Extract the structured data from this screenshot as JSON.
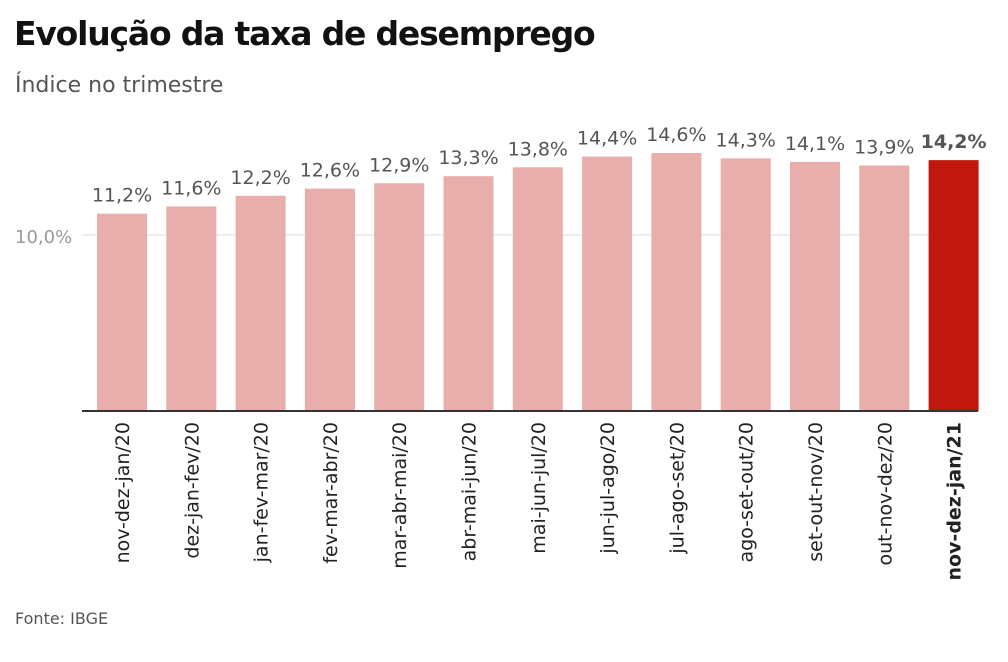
{
  "header": {
    "title": "Evolução da taxa de desemprego",
    "subtitle": "Índice no trimestre"
  },
  "footer": {
    "source": "Fonte: IBGE"
  },
  "colors": {
    "bar": "#e8aeab",
    "highlight": "#c0180c",
    "axis": "#333333",
    "grid": "#dddddd",
    "label": "#555555",
    "tick": "#9a9a9a"
  },
  "chart_data": {
    "type": "bar",
    "title": "Evolução da taxa de desemprego",
    "subtitle": "Índice no trimestre",
    "xlabel": "",
    "ylabel": "",
    "categories": [
      "nov-dez-jan/20",
      "dez-jan-fev/20",
      "jan-fev-mar/20",
      "fev-mar-abr/20",
      "mar-abr-mai/20",
      "abr-mai-jun/20",
      "mai-jun-jul/20",
      "jun-jul-ago/20",
      "jul-ago-set/20",
      "ago-set-out/20",
      "set-out-nov/20",
      "out-nov-dez/20",
      "nov-dez-jan/21"
    ],
    "values": [
      11.2,
      11.6,
      12.2,
      12.6,
      12.9,
      13.3,
      13.8,
      14.4,
      14.6,
      14.3,
      14.1,
      13.9,
      14.2
    ],
    "value_labels": [
      "11,2%",
      "11,6%",
      "12,2%",
      "12,6%",
      "12,9%",
      "13,3%",
      "13,8%",
      "14,4%",
      "14,6%",
      "14,3%",
      "14,1%",
      "13,9%",
      "14,2%"
    ],
    "highlight_index": 12,
    "ylim": [
      0,
      15.5
    ],
    "yticks": [
      {
        "value": 10,
        "label": "10,0%"
      }
    ],
    "grid": true,
    "legend": "none"
  }
}
